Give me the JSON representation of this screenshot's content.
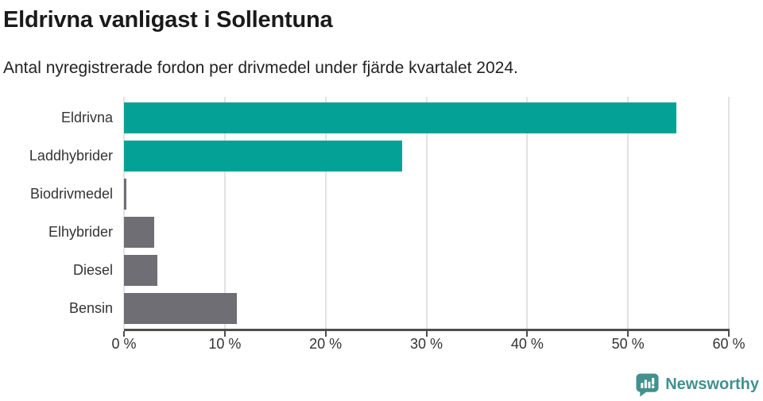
{
  "chart_data": {
    "type": "bar",
    "orientation": "horizontal",
    "title": "Eldrivna vanligast i Sollentuna",
    "subtitle": "Antal nyregistrerade fordon per drivmedel under fjärde kvartalet 2024.",
    "categories": [
      "Eldrivna",
      "Laddhybrider",
      "Biodrivmedel",
      "Elhybrider",
      "Diesel",
      "Bensin"
    ],
    "values": [
      54.8,
      27.6,
      0.2,
      3.0,
      3.3,
      11.2
    ],
    "unit": "%",
    "xlim": [
      0,
      60
    ],
    "x_ticks": [
      0,
      10,
      20,
      30,
      40,
      50,
      60
    ],
    "x_tick_labels": [
      "0 %",
      "10 %",
      "20 %",
      "30 %",
      "40 %",
      "50 %",
      "60 %"
    ],
    "bar_colors": [
      "#04a296",
      "#04a296",
      "#6e6e74",
      "#6e6e74",
      "#6e6e74",
      "#6e6e74"
    ],
    "grid": true,
    "legend": false
  },
  "colors": {
    "accent_teal": "#04a296",
    "neutral_gray": "#6e6e74",
    "axis": "#4d4d4d",
    "gridline": "#e2e2e2",
    "brand": "#42918e"
  },
  "branding": {
    "name": "Newsworthy",
    "logo_icon": "newsworthy-speech-bubble-bar-chart-icon"
  }
}
